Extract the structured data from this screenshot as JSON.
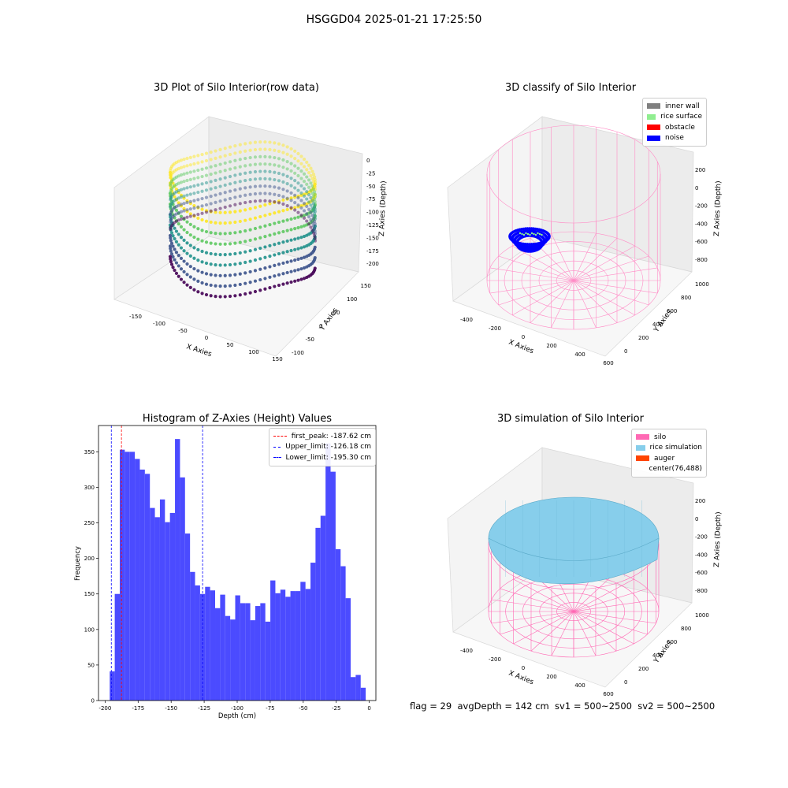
{
  "suptitle": "HSGGD04 2025-01-21 17:25:50",
  "chart_data": [
    {
      "id": "raw",
      "type": "scatter",
      "title": "3D Plot of Silo Interior(row data)",
      "xlabel": "X Axies",
      "ylabel": "Y Axies",
      "zlabel": "Z Axies (Depth)",
      "xticks": [
        "-150",
        "-100",
        "-50",
        "0",
        "50",
        "100",
        "150"
      ],
      "yticks": [
        "-100",
        "-50",
        "0",
        "50",
        "100",
        "150"
      ],
      "zticks": [
        "0",
        "-25",
        "-50",
        "-75",
        "-100",
        "-125",
        "-150",
        "-175",
        "-200"
      ],
      "colormap": "viridis",
      "grid": true
    },
    {
      "id": "classify",
      "type": "scatter",
      "title": "3D classify of Silo Interior",
      "xlabel": "X Axies",
      "ylabel": "Y Axies",
      "zlabel": "Z Axies (Depth)",
      "xticks": [
        "-400",
        "-200",
        "0",
        "200",
        "400",
        "600"
      ],
      "yticks": [
        "0",
        "200",
        "400",
        "600",
        "800",
        "1000"
      ],
      "zticks": [
        "200",
        "0",
        "-200",
        "-400",
        "-600",
        "-800"
      ],
      "legend_position": "top-right",
      "legend": [
        {
          "label": "inner wall",
          "color": "#808080"
        },
        {
          "label": "rice surface",
          "color": "#90ee90"
        },
        {
          "label": "obstacle",
          "color": "#ff0000"
        },
        {
          "label": "noise",
          "color": "#0000ff"
        }
      ],
      "grid": true
    },
    {
      "id": "histogram",
      "type": "bar",
      "title": "Histogram of Z-Axies (Height) Values",
      "xlabel": "Depth (cm)",
      "ylabel": "Frequency",
      "xlim": [
        -205,
        5
      ],
      "ylim": [
        0,
        387
      ],
      "xticks": [
        -200,
        -175,
        -150,
        -125,
        -100,
        -75,
        -50,
        -25,
        0
      ],
      "yticks": [
        0,
        50,
        100,
        150,
        200,
        250,
        300,
        350
      ],
      "bar_color": "#4b4bff",
      "bin_start": -196.5,
      "bin_width": 3.8,
      "values": [
        41,
        150,
        353,
        350,
        350,
        340,
        325,
        319,
        271,
        258,
        283,
        251,
        264,
        368,
        314,
        235,
        181,
        162,
        150,
        160,
        155,
        130,
        149,
        119,
        114,
        148,
        137,
        137,
        113,
        133,
        137,
        111,
        169,
        151,
        156,
        146,
        154,
        154,
        167,
        157,
        194,
        243,
        260,
        362,
        322,
        213,
        189,
        144,
        33,
        36,
        18
      ],
      "vlines": [
        {
          "label": "first_peak: -187.62 cm",
          "x": -187.62,
          "color": "#ff0000"
        },
        {
          "label": "Upper_limit: -126.18 cm",
          "x": -126.18,
          "color": "#0000ff"
        },
        {
          "label": "Lower_limit: -195.30 cm",
          "x": -195.3,
          "color": "#0000ff"
        }
      ],
      "legend_position": "top-right",
      "grid": false
    },
    {
      "id": "simulation",
      "type": "area",
      "title": "3D simulation of Silo Interior",
      "xlabel": "X Axies",
      "ylabel": "Y Axies",
      "zlabel": "Z Axies (Depth)",
      "xticks": [
        "-400",
        "-200",
        "0",
        "200",
        "400",
        "600"
      ],
      "yticks": [
        "0",
        "200",
        "400",
        "600",
        "800",
        "1000"
      ],
      "zticks": [
        "200",
        "0",
        "-200",
        "-400",
        "-600",
        "-800"
      ],
      "legend_position": "top-right",
      "legend": [
        {
          "label": "silo",
          "color": "#ff69b4"
        },
        {
          "label": "rice simulation",
          "color": "#87ceeb"
        },
        {
          "label": "auger",
          "color": "#ff4500"
        },
        {
          "label": "center(76,488)",
          "color": "none"
        }
      ],
      "grid": true
    }
  ],
  "caption": "flag = 29  avgDepth = 142 cm  sv1 = 500~2500  sv2 = 500~2500"
}
